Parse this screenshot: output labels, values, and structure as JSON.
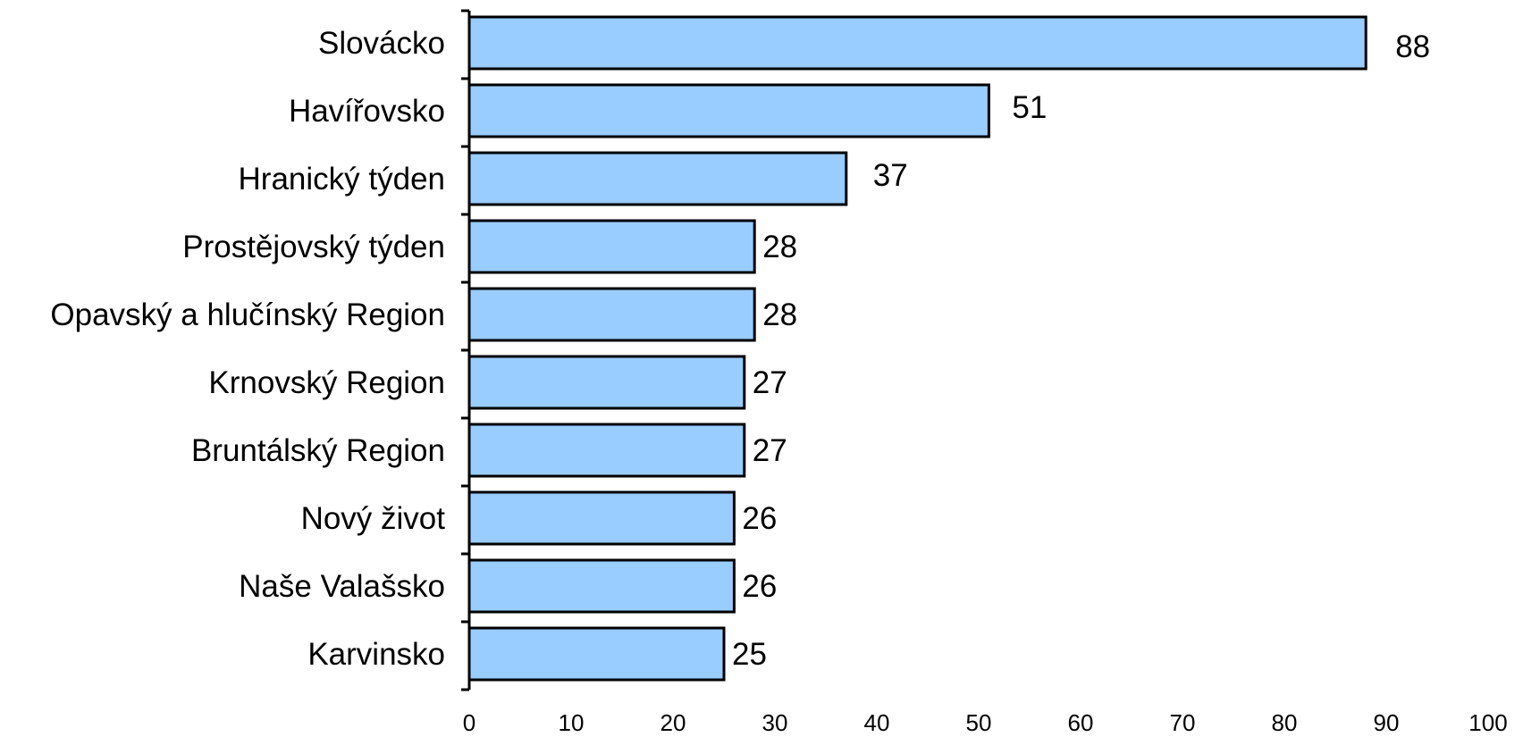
{
  "chart_data": {
    "type": "bar",
    "orientation": "horizontal",
    "categories": [
      "Slovácko",
      "Havířovsko",
      "Hranický týden",
      "Prostějovský týden",
      "Opavský a hlučínský Region",
      "Krnovský Region",
      "Bruntálský Region",
      "Nový život",
      "Naše Valašsko",
      "Karvinsko"
    ],
    "values": [
      88,
      51,
      37,
      28,
      28,
      27,
      27,
      26,
      26,
      25
    ],
    "value_labels": [
      "88",
      "51",
      "37",
      "28",
      "28",
      "27",
      "27",
      "26",
      "26",
      "25"
    ],
    "xlim": [
      0,
      100
    ],
    "x_ticks": [
      "0",
      "10",
      "20",
      "30",
      "40",
      "50",
      "60",
      "70",
      "80",
      "90",
      "100"
    ],
    "title": "",
    "xlabel": "",
    "ylabel": "",
    "grid": false,
    "legend": "none",
    "bar_color": "#99ccff",
    "bar_edge_color": "#000000"
  }
}
